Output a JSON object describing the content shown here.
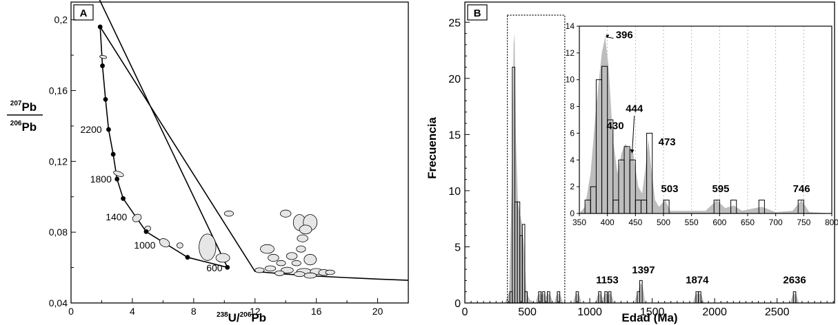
{
  "chart_data": [
    {
      "type": "scatter",
      "panel_label": "A",
      "xlabel_sup": "238",
      "xlabel_main": "U/",
      "xlabel_sup2": "206",
      "xlabel_end": "Pb",
      "ylabel_top_sup": "207",
      "ylabel_top": "Pb",
      "ylabel_bot_sup": "206",
      "ylabel_bot": "Pb",
      "xlim": [
        0,
        22
      ],
      "ylim": [
        0.04,
        0.21
      ],
      "x_ticks": [
        "0",
        "4",
        "8",
        "12",
        "16",
        "20"
      ],
      "y_ticks": [
        "0,04",
        "0,08",
        "0,12",
        "0,16",
        "0,2"
      ],
      "concordia_age_labels": [
        {
          "age": "600",
          "x": 10.33,
          "y": 0.0599
        },
        {
          "age": "1000",
          "x": 5.96,
          "y": 0.0726
        },
        {
          "age": "1400",
          "x": 4.11,
          "y": 0.0887
        },
        {
          "age": "1800",
          "x": 3.1,
          "y": 0.1101
        },
        {
          "age": "2200",
          "x": 2.46,
          "y": 0.138
        }
      ],
      "concordia_points": [
        {
          "x": 10.2,
          "y": 0.0601
        },
        {
          "x": 7.6,
          "y": 0.0658
        },
        {
          "x": 4.9,
          "y": 0.0803
        },
        {
          "x": 3.4,
          "y": 0.099
        },
        {
          "x": 3.0,
          "y": 0.11
        },
        {
          "x": 2.75,
          "y": 0.124
        },
        {
          "x": 2.45,
          "y": 0.138
        },
        {
          "x": 2.25,
          "y": 0.155
        },
        {
          "x": 2.05,
          "y": 0.174
        },
        {
          "x": 1.9,
          "y": 0.196
        }
      ],
      "ellipses": [
        {
          "x": 2.1,
          "y": 0.179,
          "rx": 0.1,
          "ry": 0.002,
          "r": 80
        },
        {
          "x": 3.1,
          "y": 0.113,
          "rx": 0.15,
          "ry": 0.003,
          "r": 70
        },
        {
          "x": 4.3,
          "y": 0.088,
          "rx": 0.3,
          "ry": 0.002,
          "r": 30
        },
        {
          "x": 5.0,
          "y": 0.082,
          "rx": 0.2,
          "ry": 0.0015,
          "r": 20
        },
        {
          "x": 6.1,
          "y": 0.074,
          "rx": 0.25,
          "ry": 0.003,
          "r": 60
        },
        {
          "x": 7.1,
          "y": 0.0725,
          "rx": 0.2,
          "ry": 0.0015,
          "r": 0
        },
        {
          "x": 8.9,
          "y": 0.0715,
          "rx": 0.55,
          "ry": 0.0075,
          "r": 0
        },
        {
          "x": 9.9,
          "y": 0.0655,
          "rx": 0.45,
          "ry": 0.0025,
          "r": 0
        },
        {
          "x": 10.3,
          "y": 0.0905,
          "rx": 0.3,
          "ry": 0.0015,
          "r": 0
        },
        {
          "x": 12.8,
          "y": 0.0705,
          "rx": 0.45,
          "ry": 0.0025,
          "r": 0
        },
        {
          "x": 13.2,
          "y": 0.0655,
          "rx": 0.35,
          "ry": 0.002,
          "r": 0
        },
        {
          "x": 14.0,
          "y": 0.0905,
          "rx": 0.35,
          "ry": 0.002,
          "r": 0
        },
        {
          "x": 14.9,
          "y": 0.0855,
          "rx": 0.4,
          "ry": 0.0045,
          "r": 0
        },
        {
          "x": 15.6,
          "y": 0.0855,
          "rx": 0.45,
          "ry": 0.0045,
          "r": 0
        },
        {
          "x": 15.3,
          "y": 0.0815,
          "rx": 0.4,
          "ry": 0.0025,
          "r": 0
        },
        {
          "x": 15.1,
          "y": 0.0765,
          "rx": 0.35,
          "ry": 0.002,
          "r": 0
        },
        {
          "x": 15.0,
          "y": 0.0705,
          "rx": 0.3,
          "ry": 0.0018,
          "r": 0
        },
        {
          "x": 15.6,
          "y": 0.0645,
          "rx": 0.4,
          "ry": 0.003,
          "r": 0
        },
        {
          "x": 14.4,
          "y": 0.0665,
          "rx": 0.35,
          "ry": 0.002,
          "r": 0
        },
        {
          "x": 14.7,
          "y": 0.0625,
          "rx": 0.3,
          "ry": 0.0015,
          "r": 0
        },
        {
          "x": 13.7,
          "y": 0.0625,
          "rx": 0.3,
          "ry": 0.0015,
          "r": 0
        },
        {
          "x": 13.0,
          "y": 0.0595,
          "rx": 0.35,
          "ry": 0.0015,
          "r": 0
        },
        {
          "x": 14.1,
          "y": 0.0585,
          "rx": 0.4,
          "ry": 0.0017,
          "r": 0
        },
        {
          "x": 15.2,
          "y": 0.0575,
          "rx": 0.5,
          "ry": 0.002,
          "r": 0
        },
        {
          "x": 16.0,
          "y": 0.0578,
          "rx": 0.4,
          "ry": 0.0017,
          "r": 0
        },
        {
          "x": 16.5,
          "y": 0.0572,
          "rx": 0.35,
          "ry": 0.0017,
          "r": 0
        },
        {
          "x": 15.6,
          "y": 0.0555,
          "rx": 0.4,
          "ry": 0.0015,
          "r": 0
        },
        {
          "x": 12.3,
          "y": 0.0585,
          "rx": 0.3,
          "ry": 0.0014,
          "r": 0
        },
        {
          "x": 13.6,
          "y": 0.0568,
          "rx": 0.3,
          "ry": 0.0014,
          "r": 0
        },
        {
          "x": 14.9,
          "y": 0.0563,
          "rx": 0.35,
          "ry": 0.0014,
          "r": 0
        },
        {
          "x": 16.9,
          "y": 0.0573,
          "rx": 0.3,
          "ry": 0.0013,
          "r": 0
        }
      ]
    },
    {
      "type": "bar",
      "panel_label": "B",
      "xlabel": "Edad (Ma)",
      "ylabel": "Frecuencia",
      "xlim": [
        0,
        3000
      ],
      "ylim": [
        0,
        26
      ],
      "x_ticks": [
        "0",
        "500",
        "1000",
        "1500",
        "2000",
        "2500"
      ],
      "y_ticks": [
        "0",
        "5",
        "10",
        "15",
        "20",
        "25"
      ],
      "bin_width": 20,
      "bins": [
        {
          "x": 360,
          "v": 1
        },
        {
          "x": 380,
          "v": 21
        },
        {
          "x": 400,
          "v": 9
        },
        {
          "x": 420,
          "v": 9
        },
        {
          "x": 440,
          "v": 6
        },
        {
          "x": 460,
          "v": 7
        },
        {
          "x": 480,
          "v": 1
        },
        {
          "x": 590,
          "v": 1
        },
        {
          "x": 620,
          "v": 1
        },
        {
          "x": 660,
          "v": 1
        },
        {
          "x": 740,
          "v": 1
        },
        {
          "x": 890,
          "v": 1
        },
        {
          "x": 1070,
          "v": 1
        },
        {
          "x": 1120,
          "v": 1
        },
        {
          "x": 1150,
          "v": 1
        },
        {
          "x": 1380,
          "v": 1
        },
        {
          "x": 1400,
          "v": 2
        },
        {
          "x": 1850,
          "v": 1
        },
        {
          "x": 1870,
          "v": 1
        },
        {
          "x": 2630,
          "v": 1
        }
      ],
      "kde": [
        {
          "x": 320,
          "y": 0
        },
        {
          "x": 355,
          "y": 1
        },
        {
          "x": 375,
          "y": 10
        },
        {
          "x": 390,
          "y": 23
        },
        {
          "x": 398,
          "y": 24
        },
        {
          "x": 408,
          "y": 15
        },
        {
          "x": 425,
          "y": 9
        },
        {
          "x": 440,
          "y": 8
        },
        {
          "x": 458,
          "y": 7
        },
        {
          "x": 474,
          "y": 5
        },
        {
          "x": 492,
          "y": 1
        },
        {
          "x": 520,
          "y": 0.3
        },
        {
          "x": 560,
          "y": 0
        }
      ],
      "peak_labels": [
        {
          "label": "1153",
          "x": 1140,
          "y": 1.5
        },
        {
          "label": "1397",
          "x": 1430,
          "y": 2.4
        },
        {
          "label": "1874",
          "x": 1860,
          "y": 1.5
        },
        {
          "label": "2636",
          "x": 2640,
          "y": 1.5
        }
      ],
      "inset": {
        "xlim": [
          350,
          800
        ],
        "ylim": [
          0,
          14
        ],
        "x_ticks": [
          "350",
          "400",
          "450",
          "500",
          "550",
          "600",
          "650",
          "700",
          "750",
          "800"
        ],
        "y_ticks": [
          "0",
          "2",
          "4",
          "6",
          "8",
          "10",
          "12",
          "14"
        ],
        "bin_width": 10,
        "bins": [
          {
            "x": 360,
            "v": 1
          },
          {
            "x": 370,
            "v": 2
          },
          {
            "x": 380,
            "v": 10
          },
          {
            "x": 390,
            "v": 11
          },
          {
            "x": 400,
            "v": 7
          },
          {
            "x": 410,
            "v": 1
          },
          {
            "x": 420,
            "v": 4
          },
          {
            "x": 430,
            "v": 5
          },
          {
            "x": 440,
            "v": 4
          },
          {
            "x": 450,
            "v": 1
          },
          {
            "x": 460,
            "v": 1
          },
          {
            "x": 470,
            "v": 6
          },
          {
            "x": 500,
            "v": 1
          },
          {
            "x": 590,
            "v": 1
          },
          {
            "x": 620,
            "v": 1
          },
          {
            "x": 670,
            "v": 1
          },
          {
            "x": 740,
            "v": 1
          }
        ],
        "kde": [
          {
            "x": 350,
            "y": 0
          },
          {
            "x": 360,
            "y": 0.5
          },
          {
            "x": 370,
            "y": 3
          },
          {
            "x": 380,
            "y": 8
          },
          {
            "x": 390,
            "y": 12
          },
          {
            "x": 396,
            "y": 13.2
          },
          {
            "x": 402,
            "y": 11
          },
          {
            "x": 410,
            "y": 5.5
          },
          {
            "x": 418,
            "y": 3
          },
          {
            "x": 425,
            "y": 4.5
          },
          {
            "x": 432,
            "y": 5.2
          },
          {
            "x": 440,
            "y": 4.8
          },
          {
            "x": 446,
            "y": 4.5
          },
          {
            "x": 455,
            "y": 2
          },
          {
            "x": 462,
            "y": 1.5
          },
          {
            "x": 468,
            "y": 3.5
          },
          {
            "x": 473,
            "y": 5.5
          },
          {
            "x": 478,
            "y": 3.5
          },
          {
            "x": 485,
            "y": 1
          },
          {
            "x": 492,
            "y": 0.5
          },
          {
            "x": 503,
            "y": 1
          },
          {
            "x": 512,
            "y": 0.2
          },
          {
            "x": 575,
            "y": 0.2
          },
          {
            "x": 595,
            "y": 1
          },
          {
            "x": 610,
            "y": 0.4
          },
          {
            "x": 625,
            "y": 0.6
          },
          {
            "x": 640,
            "y": 0.2
          },
          {
            "x": 675,
            "y": 0.5
          },
          {
            "x": 700,
            "y": 0.1
          },
          {
            "x": 730,
            "y": 0.2
          },
          {
            "x": 746,
            "y": 1
          },
          {
            "x": 760,
            "y": 0.1
          },
          {
            "x": 800,
            "y": 0
          }
        ],
        "peak_labels": [
          {
            "label": "396",
            "x": 405,
            "y": 13.3
          },
          {
            "label": "444",
            "x": 448,
            "y": 7.6
          },
          {
            "label": "430",
            "x": 414,
            "y": 6.2
          },
          {
            "label": "473",
            "x": 486,
            "y": 5.3
          },
          {
            "label": "503",
            "x": 511,
            "y": 1.6
          },
          {
            "label": "595",
            "x": 602,
            "y": 1.6
          },
          {
            "label": "746",
            "x": 746,
            "y": 1.6
          }
        ]
      }
    }
  ]
}
